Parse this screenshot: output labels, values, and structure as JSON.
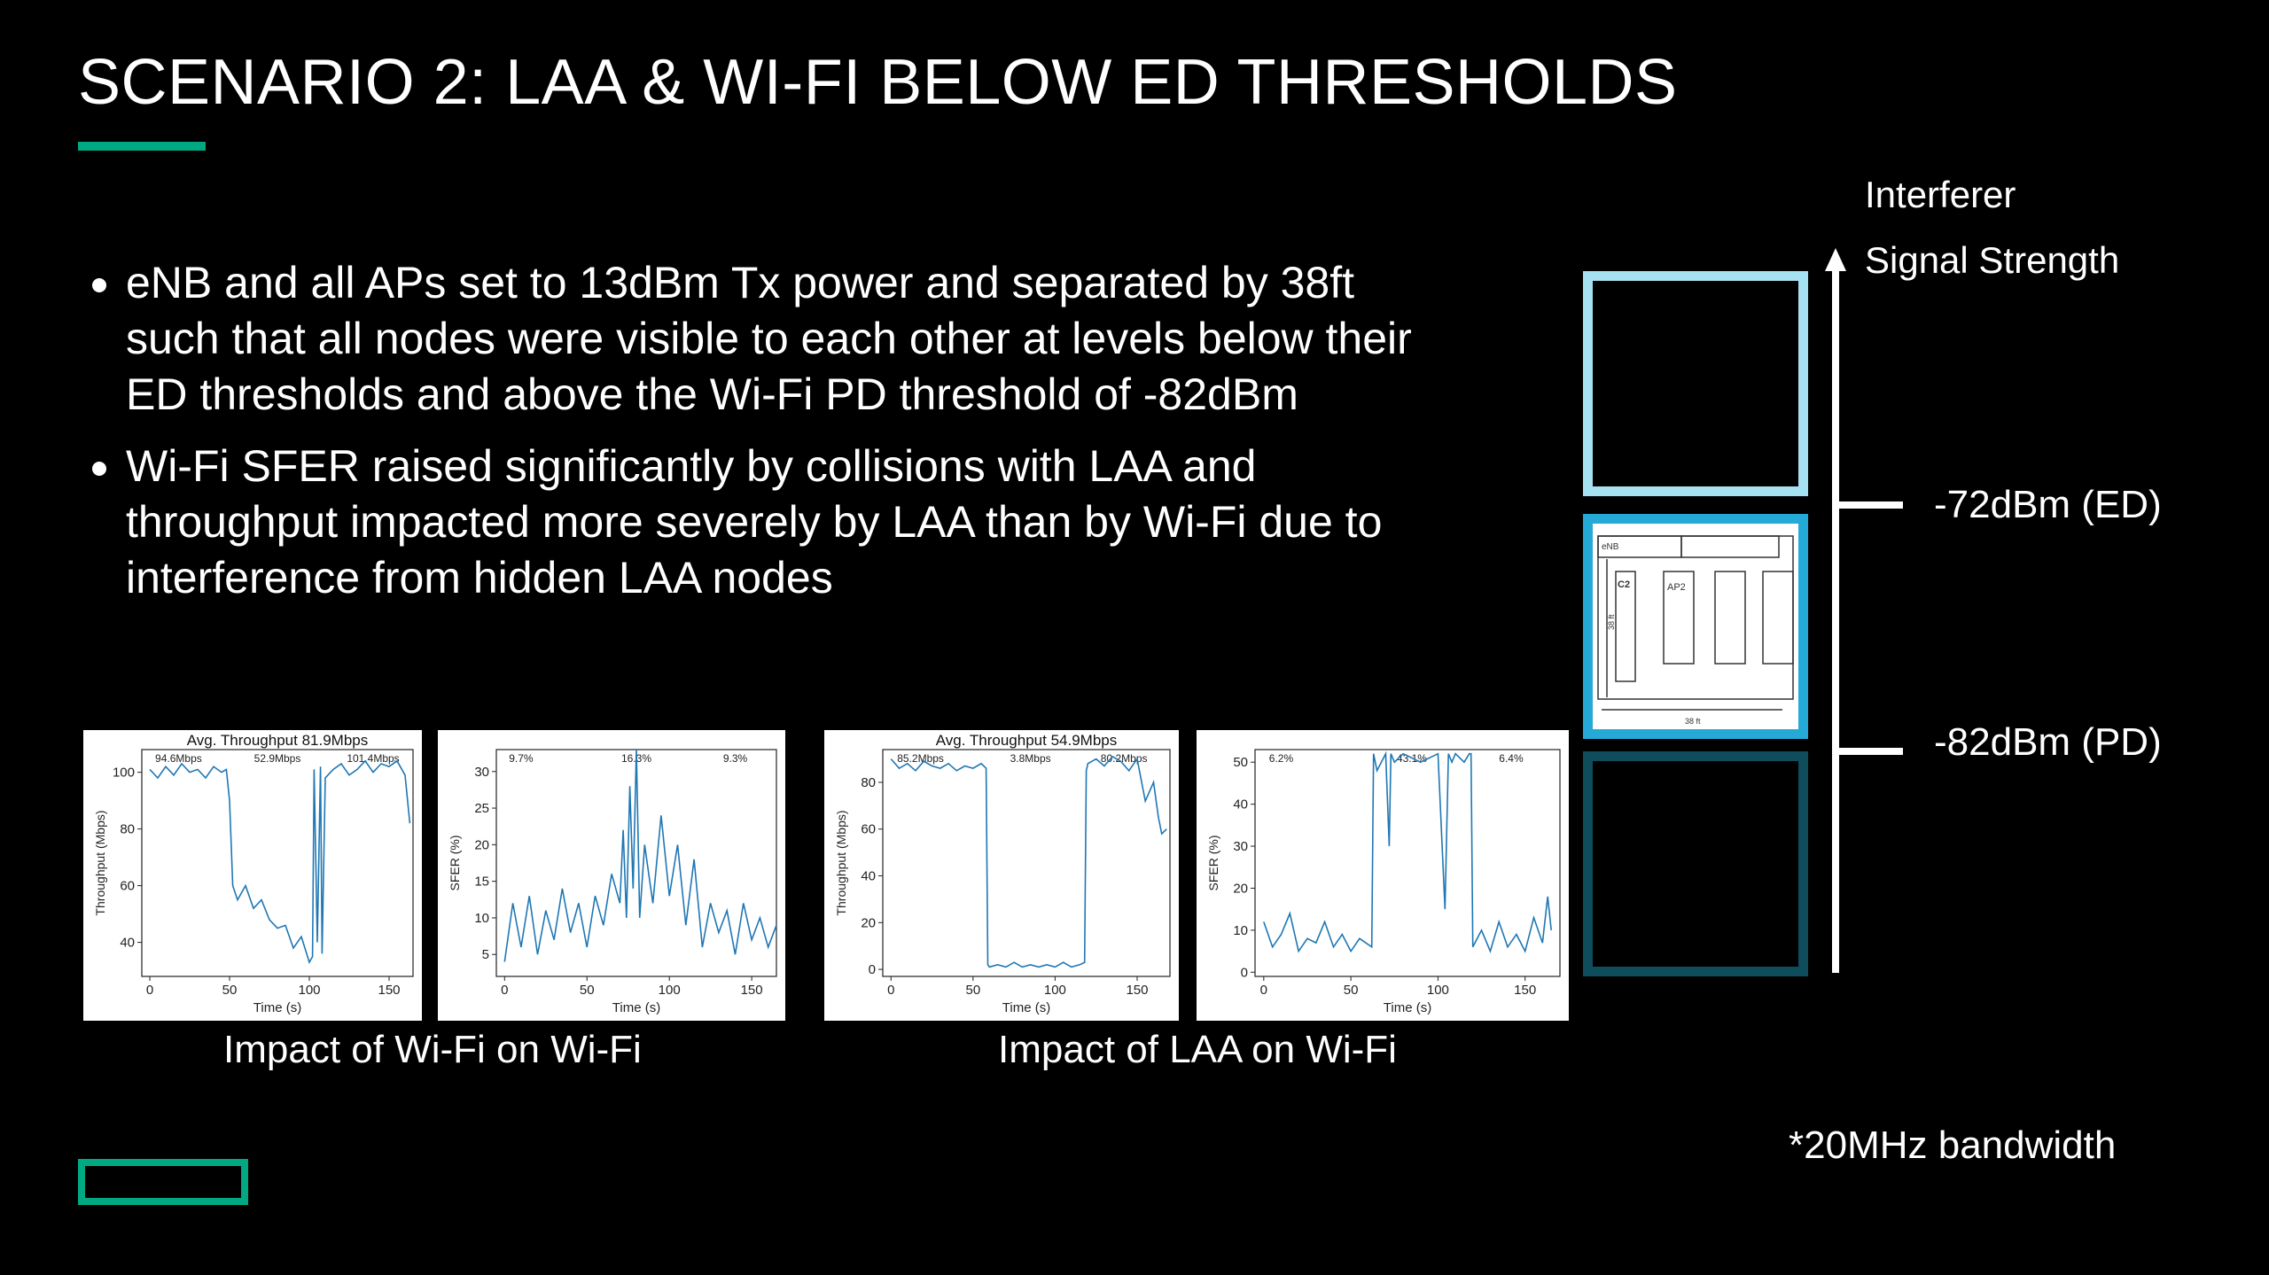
{
  "slide": {
    "title": "SCENARIO 2: LAA & WI-FI BELOW ED THRESHOLDS",
    "bullets": [
      "eNB and all APs set to 13dBm Tx power and separated by 38ft such that all nodes were visible to each other at levels below their ED thresholds and above the Wi-Fi PD threshold of -82dBm",
      "Wi-Fi SFER raised significantly by collisions with LAA and throughput impacted more severely by LAA than by Wi-Fi due to interference from hidden LAA nodes"
    ],
    "captions": [
      "Impact of Wi-Fi on Wi-Fi",
      "Impact of LAA on Wi-Fi"
    ],
    "footnote": "*20MHz bandwidth",
    "colors": {
      "accent": "#01a982",
      "line": "#1f77b4",
      "box_light": "#a6e1f1",
      "box_mid": "#25a9d6",
      "box_dark": "#0f4d5c"
    },
    "icons": [
      "hpe-logo-rectangle",
      "up-arrow-icon"
    ]
  },
  "strength_scale": {
    "axis_label_1": "Interferer",
    "axis_label_2": "Signal Strength",
    "levels": [
      "-72dBm (ED)",
      "-82dBm (PD)"
    ],
    "diagram_labels": {
      "enb": "eNB",
      "c2": "C2",
      "ap2": "AP2",
      "dim_v": "38 ft",
      "dim_h": "38 ft"
    }
  },
  "chart_data": [
    {
      "type": "line",
      "title": "Avg. Throughput 81.9Mbps",
      "xlabel": "Time (s)",
      "ylabel": "Throughput (Mbps)",
      "xlim": [
        -5,
        165
      ],
      "ylim": [
        28,
        108
      ],
      "xticks": [
        0,
        50,
        100,
        150
      ],
      "yticks": [
        40,
        60,
        80,
        100
      ],
      "annotations": [
        {
          "x": 18,
          "text": "94.6Mbps"
        },
        {
          "x": 80,
          "text": "52.9Mbps"
        },
        {
          "x": 140,
          "text": "101.4Mbps"
        }
      ],
      "x": [
        0,
        5,
        10,
        15,
        20,
        25,
        30,
        35,
        40,
        45,
        48,
        50,
        52,
        55,
        60,
        65,
        70,
        75,
        80,
        85,
        90,
        95,
        100,
        102,
        103,
        105,
        107,
        108,
        110,
        115,
        120,
        125,
        130,
        135,
        140,
        145,
        150,
        155,
        160,
        163
      ],
      "series": [
        {
          "values": [
            101,
            98,
            102,
            99,
            103,
            100,
            101,
            98,
            102,
            100,
            101,
            90,
            60,
            55,
            60,
            52,
            55,
            48,
            45,
            46,
            38,
            42,
            33,
            35,
            101,
            40,
            102,
            36,
            98,
            101,
            103,
            99,
            101,
            104,
            100,
            103,
            102,
            104,
            99,
            82
          ]
        }
      ]
    },
    {
      "type": "line",
      "xlabel": "Time (s)",
      "ylabel": "SFER (%)",
      "xlim": [
        -5,
        165
      ],
      "ylim": [
        2,
        33
      ],
      "xticks": [
        0,
        50,
        100,
        150
      ],
      "yticks": [
        5,
        10,
        15,
        20,
        25,
        30
      ],
      "annotations": [
        {
          "x": 10,
          "text": "9.7%"
        },
        {
          "x": 80,
          "text": "16.3%"
        },
        {
          "x": 140,
          "text": "9.3%"
        }
      ],
      "x": [
        0,
        5,
        10,
        15,
        20,
        25,
        30,
        35,
        40,
        45,
        50,
        55,
        60,
        65,
        70,
        72,
        74,
        76,
        78,
        80,
        82,
        85,
        90,
        95,
        100,
        105,
        110,
        115,
        120,
        125,
        130,
        135,
        140,
        145,
        150,
        155,
        160,
        165
      ],
      "series": [
        {
          "values": [
            4,
            12,
            6,
            13,
            5,
            11,
            7,
            14,
            8,
            12,
            6,
            13,
            9,
            16,
            12,
            22,
            10,
            28,
            14,
            33,
            10,
            20,
            12,
            24,
            13,
            20,
            9,
            18,
            6,
            12,
            8,
            11,
            5,
            12,
            7,
            10,
            6,
            9
          ]
        }
      ]
    },
    {
      "type": "line",
      "title": "Avg. Throughput 54.9Mbps",
      "xlabel": "Time (s)",
      "ylabel": "Throughput (Mbps)",
      "xlim": [
        -5,
        170
      ],
      "ylim": [
        -3,
        94
      ],
      "xticks": [
        0,
        50,
        100,
        150
      ],
      "yticks": [
        0,
        20,
        40,
        60,
        80
      ],
      "annotations": [
        {
          "x": 18,
          "text": "85.2Mbps"
        },
        {
          "x": 85,
          "text": "3.8Mbps"
        },
        {
          "x": 142,
          "text": "80.2Mbps"
        }
      ],
      "x": [
        0,
        5,
        10,
        15,
        20,
        25,
        30,
        35,
        40,
        45,
        50,
        55,
        58,
        59,
        60,
        65,
        70,
        75,
        80,
        85,
        90,
        95,
        100,
        105,
        110,
        115,
        118,
        119,
        120,
        125,
        130,
        135,
        140,
        145,
        150,
        155,
        160,
        163,
        165,
        168
      ],
      "series": [
        {
          "values": [
            90,
            86,
            88,
            85,
            89,
            87,
            86,
            88,
            85,
            87,
            86,
            88,
            86,
            2,
            1,
            2,
            1,
            3,
            1,
            2,
            1,
            2,
            1,
            3,
            1,
            2,
            3,
            85,
            88,
            90,
            87,
            91,
            89,
            85,
            90,
            72,
            80,
            65,
            58,
            60
          ]
        }
      ]
    },
    {
      "type": "line",
      "xlabel": "Time (s)",
      "ylabel": "SFER (%)",
      "xlim": [
        -5,
        170
      ],
      "ylim": [
        -1,
        53
      ],
      "xticks": [
        0,
        50,
        100,
        150
      ],
      "yticks": [
        0,
        10,
        20,
        30,
        40,
        50
      ],
      "annotations": [
        {
          "x": 10,
          "text": "6.2%"
        },
        {
          "x": 85,
          "text": "43.1%"
        },
        {
          "x": 142,
          "text": "6.4%"
        }
      ],
      "x": [
        0,
        5,
        10,
        15,
        20,
        25,
        30,
        35,
        40,
        45,
        50,
        55,
        62,
        63,
        65,
        70,
        72,
        73,
        75,
        80,
        90,
        100,
        104,
        106,
        108,
        110,
        115,
        118,
        119,
        120,
        125,
        130,
        135,
        140,
        145,
        150,
        155,
        160,
        163,
        165
      ],
      "series": [
        {
          "values": [
            12,
            6,
            9,
            14,
            5,
            8,
            7,
            12,
            6,
            9,
            5,
            8,
            6,
            52,
            48,
            52,
            30,
            52,
            50,
            52,
            50,
            52,
            15,
            52,
            50,
            52,
            50,
            52,
            52,
            6,
            10,
            5,
            12,
            6,
            9,
            5,
            13,
            7,
            18,
            10
          ]
        }
      ]
    }
  ]
}
